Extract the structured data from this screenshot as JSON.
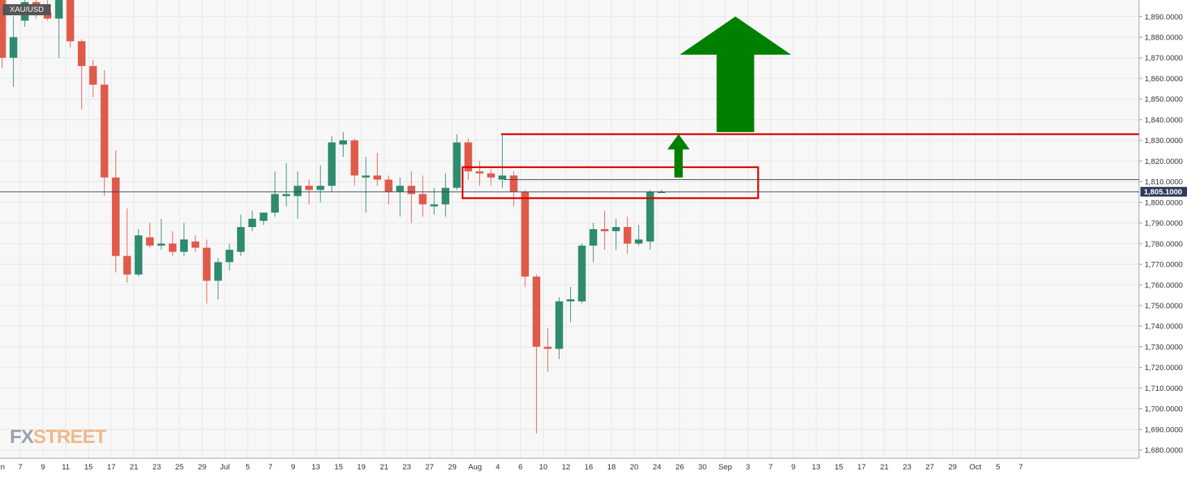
{
  "symbol": "XAU/USD",
  "watermark": {
    "part1": "FX",
    "part2": "STREET"
  },
  "colors": {
    "up": "#2e8b6e",
    "down": "#e05a4a",
    "zone": "#e00000",
    "arrow": "#008000",
    "price_line": "#2d3e5c",
    "grid": "#e6e6e6"
  },
  "chart_data": {
    "type": "candlestick",
    "ylim": [
      1676,
      1898
    ],
    "y_ticks": [
      1680,
      1690,
      1700,
      1710,
      1720,
      1730,
      1740,
      1750,
      1760,
      1770,
      1780,
      1790,
      1800,
      1810,
      1820,
      1830,
      1840,
      1850,
      1860,
      1870,
      1880,
      1890
    ],
    "x_ticks": [
      {
        "label": "Jun",
        "idx": -0.3
      },
      {
        "label": "7",
        "idx": 1.6
      },
      {
        "label": "9",
        "idx": 3.6
      },
      {
        "label": "11",
        "idx": 5.6
      },
      {
        "label": "15",
        "idx": 7.6
      },
      {
        "label": "17",
        "idx": 9.6
      },
      {
        "label": "21",
        "idx": 11.6
      },
      {
        "label": "23",
        "idx": 13.6
      },
      {
        "label": "25",
        "idx": 15.6
      },
      {
        "label": "29",
        "idx": 17.6
      },
      {
        "label": "Jul",
        "idx": 19.6
      },
      {
        "label": "5",
        "idx": 21.6
      },
      {
        "label": "7",
        "idx": 23.6
      },
      {
        "label": "9",
        "idx": 25.6
      },
      {
        "label": "13",
        "idx": 27.6
      },
      {
        "label": "15",
        "idx": 29.6
      },
      {
        "label": "19",
        "idx": 31.6
      },
      {
        "label": "21",
        "idx": 33.6
      },
      {
        "label": "23",
        "idx": 35.6
      },
      {
        "label": "27",
        "idx": 37.6
      },
      {
        "label": "29",
        "idx": 39.6
      },
      {
        "label": "Aug",
        "idx": 41.6
      },
      {
        "label": "4",
        "idx": 43.6
      },
      {
        "label": "6",
        "idx": 45.6
      },
      {
        "label": "10",
        "idx": 47.6
      },
      {
        "label": "12",
        "idx": 49.6
      },
      {
        "label": "16",
        "idx": 51.6
      },
      {
        "label": "18",
        "idx": 53.6
      },
      {
        "label": "20",
        "idx": 55.6
      },
      {
        "label": "24",
        "idx": 57.6
      },
      {
        "label": "26",
        "idx": 59.6
      },
      {
        "label": "30",
        "idx": 61.6
      },
      {
        "label": "Sep",
        "idx": 63.6
      },
      {
        "label": "3",
        "idx": 65.6
      },
      {
        "label": "7",
        "idx": 67.6
      },
      {
        "label": "9",
        "idx": 69.6
      },
      {
        "label": "13",
        "idx": 71.6
      },
      {
        "label": "15",
        "idx": 73.6
      },
      {
        "label": "17",
        "idx": 75.6
      },
      {
        "label": "21",
        "idx": 77.6
      },
      {
        "label": "23",
        "idx": 79.6
      },
      {
        "label": "27",
        "idx": 81.6
      },
      {
        "label": "29",
        "idx": 83.6
      },
      {
        "label": "Oct",
        "idx": 85.6
      },
      {
        "label": "5",
        "idx": 87.6
      },
      {
        "label": "7",
        "idx": 89.6
      }
    ],
    "candles": [
      {
        "o": 1898,
        "h": 1903,
        "l": 1865,
        "c": 1870
      },
      {
        "o": 1870,
        "h": 1890,
        "l": 1856,
        "c": 1880
      },
      {
        "o": 1888,
        "h": 1902,
        "l": 1885,
        "c": 1897
      },
      {
        "o": 1897,
        "h": 1902,
        "l": 1889,
        "c": 1892
      },
      {
        "o": 1892,
        "h": 1898,
        "l": 1888,
        "c": 1889
      },
      {
        "o": 1889,
        "h": 1903,
        "l": 1870,
        "c": 1898
      },
      {
        "o": 1898,
        "h": 1900,
        "l": 1875,
        "c": 1878
      },
      {
        "o": 1878,
        "h": 1879,
        "l": 1845,
        "c": 1866
      },
      {
        "o": 1866,
        "h": 1869,
        "l": 1851,
        "c": 1857
      },
      {
        "o": 1857,
        "h": 1864,
        "l": 1803,
        "c": 1812
      },
      {
        "o": 1812,
        "h": 1825,
        "l": 1766,
        "c": 1774
      },
      {
        "o": 1774,
        "h": 1797,
        "l": 1761,
        "c": 1765
      },
      {
        "o": 1765,
        "h": 1787,
        "l": 1764,
        "c": 1784
      },
      {
        "o": 1783,
        "h": 1790,
        "l": 1778,
        "c": 1779
      },
      {
        "o": 1779,
        "h": 1792,
        "l": 1777,
        "c": 1780
      },
      {
        "o": 1780,
        "h": 1786,
        "l": 1774,
        "c": 1776
      },
      {
        "o": 1776,
        "h": 1790,
        "l": 1774,
        "c": 1782
      },
      {
        "o": 1781,
        "h": 1784,
        "l": 1776,
        "c": 1778
      },
      {
        "o": 1778,
        "h": 1782,
        "l": 1751,
        "c": 1762
      },
      {
        "o": 1762,
        "h": 1773,
        "l": 1753,
        "c": 1771
      },
      {
        "o": 1771,
        "h": 1780,
        "l": 1767,
        "c": 1777
      },
      {
        "o": 1776,
        "h": 1794,
        "l": 1774,
        "c": 1788
      },
      {
        "o": 1788,
        "h": 1796,
        "l": 1786,
        "c": 1792
      },
      {
        "o": 1791,
        "h": 1795,
        "l": 1789,
        "c": 1795
      },
      {
        "o": 1795,
        "h": 1815,
        "l": 1793,
        "c": 1804
      },
      {
        "o": 1803,
        "h": 1819,
        "l": 1798,
        "c": 1804
      },
      {
        "o": 1803,
        "h": 1815,
        "l": 1792,
        "c": 1808
      },
      {
        "o": 1808,
        "h": 1811,
        "l": 1799,
        "c": 1806
      },
      {
        "o": 1806,
        "h": 1818,
        "l": 1800,
        "c": 1808
      },
      {
        "o": 1808,
        "h": 1832,
        "l": 1805,
        "c": 1829
      },
      {
        "o": 1828,
        "h": 1834,
        "l": 1822,
        "c": 1830
      },
      {
        "o": 1830,
        "h": 1831,
        "l": 1808,
        "c": 1813
      },
      {
        "o": 1812,
        "h": 1822,
        "l": 1795,
        "c": 1813
      },
      {
        "o": 1813,
        "h": 1824,
        "l": 1808,
        "c": 1811
      },
      {
        "o": 1811,
        "h": 1813,
        "l": 1799,
        "c": 1805
      },
      {
        "o": 1805,
        "h": 1812,
        "l": 1793,
        "c": 1808
      },
      {
        "o": 1808,
        "h": 1815,
        "l": 1790,
        "c": 1804
      },
      {
        "o": 1804,
        "h": 1813,
        "l": 1793,
        "c": 1799
      },
      {
        "o": 1798,
        "h": 1807,
        "l": 1794,
        "c": 1799
      },
      {
        "o": 1799,
        "h": 1814,
        "l": 1793,
        "c": 1807
      },
      {
        "o": 1807,
        "h": 1833,
        "l": 1806,
        "c": 1829
      },
      {
        "o": 1829,
        "h": 1831,
        "l": 1811,
        "c": 1815
      },
      {
        "o": 1815,
        "h": 1820,
        "l": 1808,
        "c": 1814
      },
      {
        "o": 1814,
        "h": 1816,
        "l": 1808,
        "c": 1812
      },
      {
        "o": 1811,
        "h": 1833,
        "l": 1807,
        "c": 1813
      },
      {
        "o": 1813,
        "h": 1815,
        "l": 1798,
        "c": 1805
      },
      {
        "o": 1805,
        "h": 1806,
        "l": 1759,
        "c": 1764
      },
      {
        "o": 1764,
        "h": 1765,
        "l": 1688,
        "c": 1730
      },
      {
        "o": 1730,
        "h": 1739,
        "l": 1718,
        "c": 1729
      },
      {
        "o": 1729,
        "h": 1754,
        "l": 1724,
        "c": 1752
      },
      {
        "o": 1752,
        "h": 1759,
        "l": 1742,
        "c": 1753
      },
      {
        "o": 1752,
        "h": 1780,
        "l": 1751,
        "c": 1779
      },
      {
        "o": 1779,
        "h": 1790,
        "l": 1771,
        "c": 1787
      },
      {
        "o": 1787,
        "h": 1796,
        "l": 1777,
        "c": 1786
      },
      {
        "o": 1786,
        "h": 1792,
        "l": 1777,
        "c": 1788
      },
      {
        "o": 1788,
        "h": 1793,
        "l": 1775,
        "c": 1780
      },
      {
        "o": 1780,
        "h": 1789,
        "l": 1779,
        "c": 1782
      },
      {
        "o": 1781,
        "h": 1806,
        "l": 1777,
        "c": 1805
      },
      {
        "o": 1805,
        "h": 1806,
        "l": 1805,
        "c": 1805
      }
    ],
    "current_price": 1805.1,
    "current_price_label": "1,805.1000",
    "resistance_line": 1833,
    "secondary_line": 1811,
    "zone": {
      "top": 1817,
      "bottom": 1802,
      "start_idx": 40.5,
      "end_idx": 66.5
    },
    "resistance_start_idx": 43.9,
    "small_arrow": {
      "idx": 59.5,
      "from": 1812,
      "to": 1833
    },
    "big_arrow": {
      "idx": 64.5,
      "from": 1834,
      "to": 1890
    }
  }
}
